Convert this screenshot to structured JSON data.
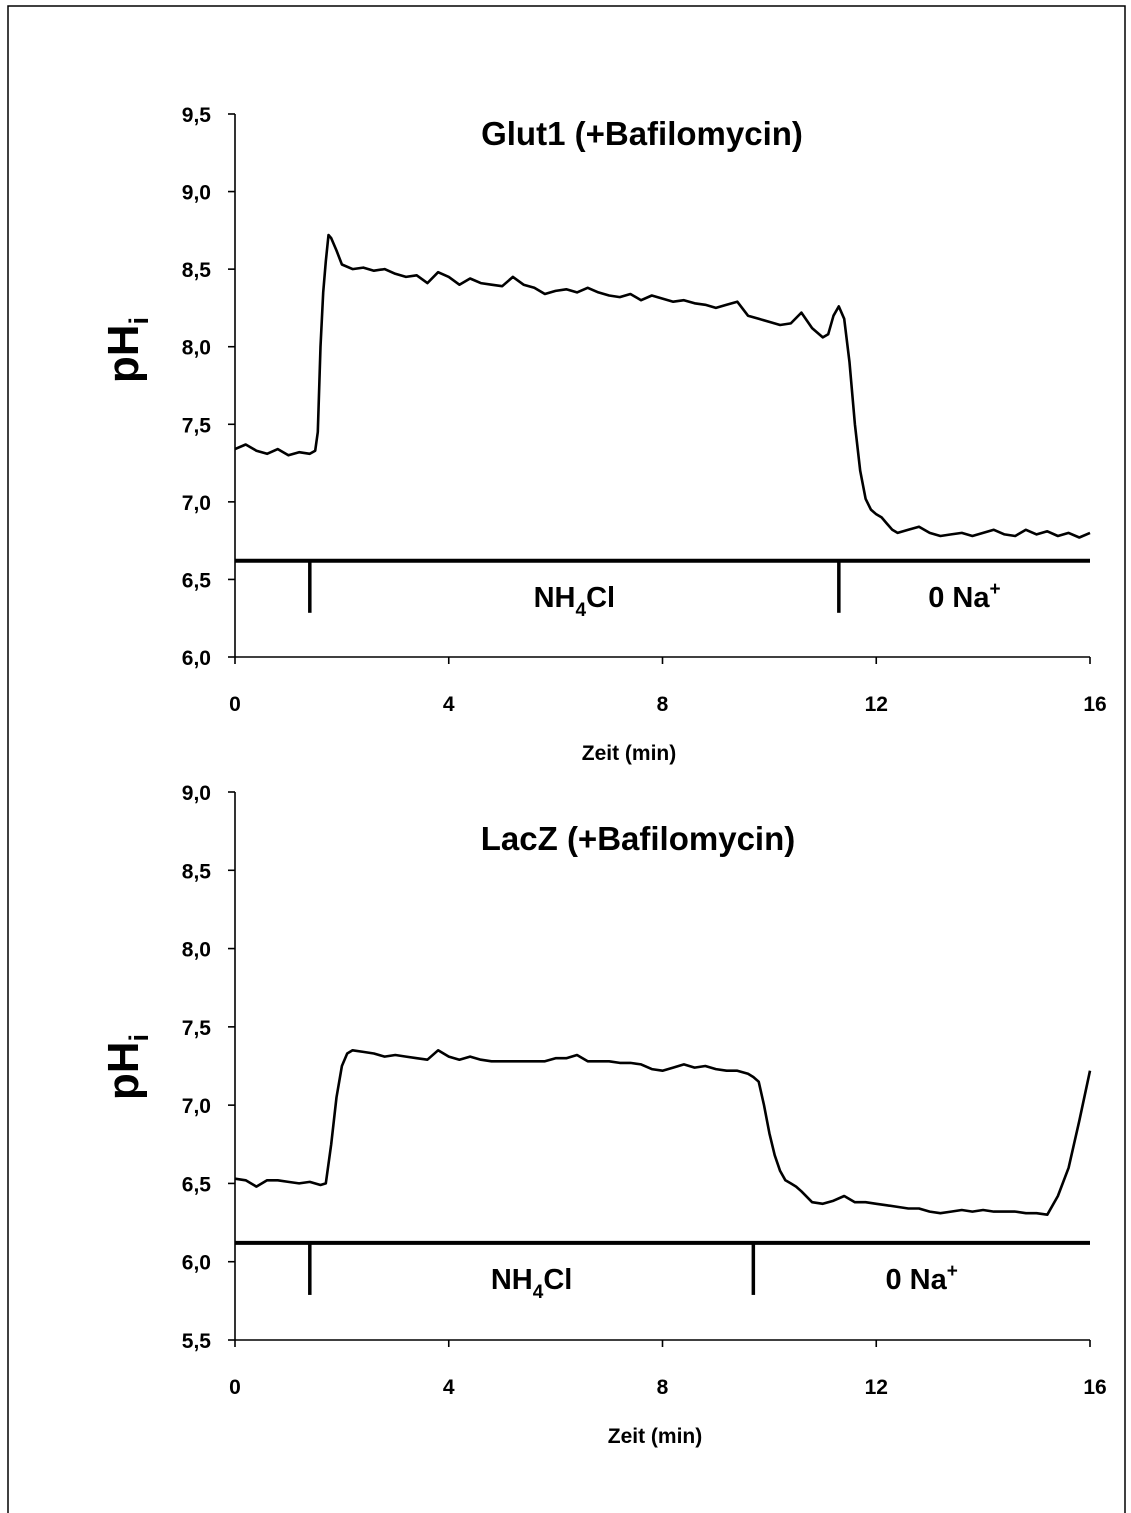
{
  "chart_data": [
    {
      "type": "line",
      "title": "Glut1 (+Bafilomycin)",
      "xlabel": "Zeit (min)",
      "ylabel": "pH",
      "ylabel_sub": "i",
      "xlim": [
        0,
        16
      ],
      "ylim": [
        6.0,
        9.5
      ],
      "xticks": [
        "0",
        "4",
        "8",
        "12",
        "16"
      ],
      "yticks": [
        "6,0",
        "6,5",
        "7,0",
        "7,5",
        "8,0",
        "8,5",
        "9,0",
        "9,5"
      ],
      "grid": false,
      "series": [
        {
          "x": [
            0,
            0.2,
            0.4,
            0.6,
            0.8,
            1.0,
            1.2,
            1.4,
            1.5,
            1.55,
            1.6,
            1.65,
            1.7,
            1.75,
            1.8,
            1.9,
            2.0,
            2.2,
            2.4,
            2.6,
            2.8,
            3.0,
            3.2,
            3.4,
            3.6,
            3.8,
            4.0,
            4.2,
            4.4,
            4.6,
            4.8,
            5.0,
            5.2,
            5.4,
            5.6,
            5.8,
            6.0,
            6.2,
            6.4,
            6.6,
            6.8,
            7.0,
            7.2,
            7.4,
            7.6,
            7.8,
            8.0,
            8.2,
            8.4,
            8.6,
            8.8,
            9.0,
            9.2,
            9.4,
            9.6,
            9.8,
            10.0,
            10.2,
            10.4,
            10.6,
            10.8,
            11.0,
            11.1,
            11.2,
            11.3,
            11.4,
            11.5,
            11.6,
            11.7,
            11.8,
            11.9,
            12.0,
            12.1,
            12.2,
            12.3,
            12.4,
            12.6,
            12.8,
            13.0,
            13.2,
            13.4,
            13.6,
            13.8,
            14.0,
            14.2,
            14.4,
            14.6,
            14.8,
            15.0,
            15.2,
            15.4,
            15.6,
            15.8,
            16.0
          ],
          "y": [
            7.34,
            7.37,
            7.33,
            7.31,
            7.34,
            7.3,
            7.32,
            7.31,
            7.33,
            7.45,
            8.0,
            8.35,
            8.55,
            8.72,
            8.7,
            8.62,
            8.53,
            8.5,
            8.51,
            8.49,
            8.5,
            8.47,
            8.45,
            8.46,
            8.41,
            8.48,
            8.45,
            8.4,
            8.44,
            8.41,
            8.4,
            8.39,
            8.45,
            8.4,
            8.38,
            8.34,
            8.36,
            8.37,
            8.35,
            8.38,
            8.35,
            8.33,
            8.32,
            8.34,
            8.3,
            8.33,
            8.31,
            8.29,
            8.3,
            8.28,
            8.27,
            8.25,
            8.27,
            8.29,
            8.2,
            8.18,
            8.16,
            8.14,
            8.15,
            8.22,
            8.12,
            8.06,
            8.08,
            8.2,
            8.26,
            8.18,
            7.9,
            7.5,
            7.2,
            7.02,
            6.95,
            6.92,
            6.9,
            6.86,
            6.82,
            6.8,
            6.82,
            6.84,
            6.8,
            6.78,
            6.79,
            6.8,
            6.78,
            6.8,
            6.82,
            6.79,
            6.78,
            6.82,
            6.79,
            6.81,
            6.78,
            6.8,
            6.77,
            6.8
          ]
        }
      ],
      "bar_level": 6.62,
      "markers_x": [
        1.4,
        11.3
      ],
      "segments": [
        {
          "label": "NH",
          "sub": "4",
          "tail": "Cl"
        },
        {
          "label": "0 Na",
          "sup": "+"
        }
      ]
    },
    {
      "type": "line",
      "title": "LacZ (+Bafilomycin)",
      "xlabel": "Zeit (min)",
      "ylabel": "pH",
      "ylabel_sub": "i",
      "xlim": [
        0,
        16
      ],
      "ylim": [
        5.5,
        9.0
      ],
      "xticks": [
        "0",
        "4",
        "8",
        "12",
        "16"
      ],
      "yticks": [
        "5,5",
        "6,0",
        "6,5",
        "7,0",
        "7,5",
        "8,0",
        "8,5",
        "9,0"
      ],
      "grid": false,
      "series": [
        {
          "x": [
            0,
            0.2,
            0.4,
            0.6,
            0.8,
            1.0,
            1.2,
            1.4,
            1.6,
            1.7,
            1.8,
            1.9,
            2.0,
            2.1,
            2.2,
            2.4,
            2.6,
            2.8,
            3.0,
            3.2,
            3.4,
            3.6,
            3.8,
            4.0,
            4.2,
            4.4,
            4.6,
            4.8,
            5.0,
            5.2,
            5.4,
            5.6,
            5.8,
            6.0,
            6.2,
            6.4,
            6.6,
            6.8,
            7.0,
            7.2,
            7.4,
            7.6,
            7.8,
            8.0,
            8.2,
            8.4,
            8.6,
            8.8,
            9.0,
            9.2,
            9.4,
            9.6,
            9.7,
            9.8,
            9.9,
            10.0,
            10.1,
            10.2,
            10.3,
            10.4,
            10.5,
            10.6,
            10.8,
            11.0,
            11.2,
            11.4,
            11.6,
            11.8,
            12.0,
            12.2,
            12.4,
            12.6,
            12.8,
            13.0,
            13.2,
            13.4,
            13.6,
            13.8,
            14.0,
            14.2,
            14.4,
            14.6,
            14.8,
            15.0,
            15.2,
            15.4,
            15.6,
            15.8,
            16.0
          ],
          "y": [
            6.53,
            6.52,
            6.48,
            6.52,
            6.52,
            6.51,
            6.5,
            6.51,
            6.49,
            6.5,
            6.75,
            7.05,
            7.25,
            7.33,
            7.35,
            7.34,
            7.33,
            7.31,
            7.32,
            7.31,
            7.3,
            7.29,
            7.35,
            7.31,
            7.29,
            7.31,
            7.29,
            7.28,
            7.28,
            7.28,
            7.28,
            7.28,
            7.28,
            7.3,
            7.3,
            7.32,
            7.28,
            7.28,
            7.28,
            7.27,
            7.27,
            7.26,
            7.23,
            7.22,
            7.24,
            7.26,
            7.24,
            7.25,
            7.23,
            7.22,
            7.22,
            7.2,
            7.18,
            7.15,
            7.0,
            6.82,
            6.68,
            6.58,
            6.52,
            6.5,
            6.48,
            6.45,
            6.38,
            6.37,
            6.39,
            6.42,
            6.38,
            6.38,
            6.37,
            6.36,
            6.35,
            6.34,
            6.34,
            6.32,
            6.31,
            6.32,
            6.33,
            6.32,
            6.33,
            6.32,
            6.32,
            6.32,
            6.31,
            6.31,
            6.3,
            6.42,
            6.6,
            6.9,
            7.22
          ]
        }
      ],
      "bar_level": 6.12,
      "markers_x": [
        1.4,
        9.7
      ],
      "segments": [
        {
          "label": "NH",
          "sub": "4",
          "tail": "Cl"
        },
        {
          "label": "0 Na",
          "sup": "+"
        }
      ]
    }
  ]
}
